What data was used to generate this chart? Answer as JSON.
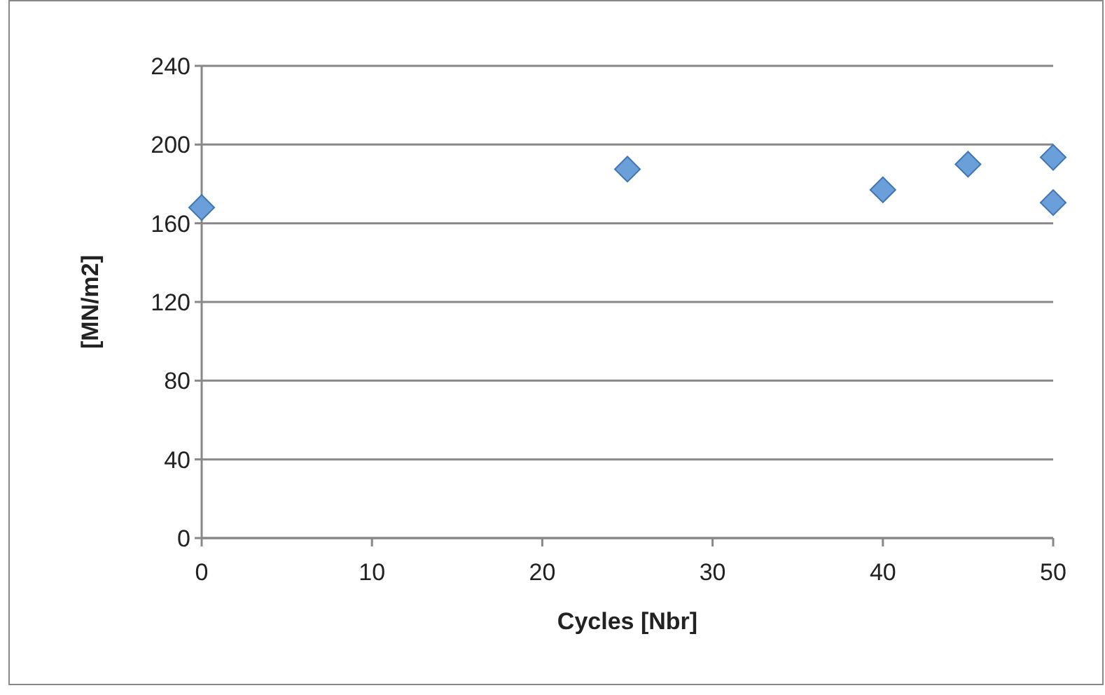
{
  "chart_data": {
    "type": "scatter",
    "xlabel": "Cycles [Nbr]",
    "ylabel": "[MN/m2]",
    "x": [
      0,
      25,
      40,
      45,
      50,
      50
    ],
    "values": [
      168,
      187.5,
      177,
      190,
      193.5,
      170.5
    ],
    "color": "#6a9fd9",
    "xlim": [
      0,
      50
    ],
    "ylim": [
      0,
      240
    ],
    "xticks": [
      0,
      10,
      20,
      30,
      40,
      50
    ],
    "yticks": [
      0,
      40,
      80,
      120,
      160,
      200,
      240
    ],
    "grid": "y",
    "marker": "diamond"
  }
}
